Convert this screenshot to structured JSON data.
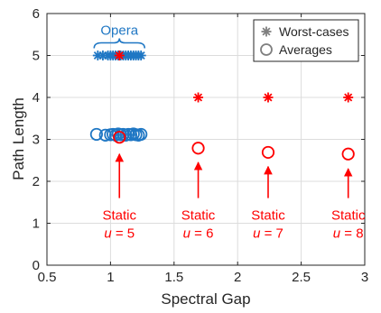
{
  "chart_data": {
    "type": "scatter",
    "title": "",
    "xlabel": "Spectral Gap",
    "ylabel": "Path Length",
    "xlim": [
      0.5,
      3.0
    ],
    "ylim": [
      0,
      6
    ],
    "xticks": [
      0.5,
      1,
      1.5,
      2,
      2.5,
      3
    ],
    "xtick_labels": [
      "0.5",
      "1",
      "1.5",
      "2",
      "2.5",
      "3"
    ],
    "yticks": [
      0,
      1,
      2,
      3,
      4,
      5,
      6
    ],
    "ytick_labels": [
      "0",
      "1",
      "2",
      "3",
      "4",
      "5",
      "6"
    ],
    "grid": true,
    "legend": {
      "position": "top-right",
      "entries": [
        {
          "label": "Worst-cases",
          "marker": "asterisk",
          "color": "#7f7f7f"
        },
        {
          "label": "Averages",
          "marker": "circle",
          "color": "#7f7f7f"
        }
      ]
    },
    "series": [
      {
        "group": "opera",
        "metric": "worst-case",
        "marker": "asterisk",
        "color": "#1f77c4",
        "x": [
          0.9,
          0.94,
          0.98,
          1.0,
          1.02,
          1.04,
          1.06,
          1.08,
          1.1,
          1.12,
          1.14,
          1.16,
          1.18,
          1.2,
          1.22,
          1.24
        ],
        "y": [
          5,
          5,
          5,
          5,
          5,
          5,
          5,
          5,
          5,
          5,
          5,
          5,
          5,
          5,
          5,
          5
        ]
      },
      {
        "group": "opera",
        "metric": "average",
        "marker": "circle",
        "color": "#1f77c4",
        "x": [
          0.89,
          0.96,
          1.0,
          1.02,
          1.04,
          1.06,
          1.08,
          1.1,
          1.12,
          1.14,
          1.16,
          1.18,
          1.2,
          1.22,
          1.24
        ],
        "y": [
          3.12,
          3.1,
          3.11,
          3.12,
          3.1,
          3.13,
          3.11,
          3.12,
          3.1,
          3.12,
          3.11,
          3.13,
          3.11,
          3.1,
          3.12
        ]
      },
      {
        "group": "static",
        "metric": "worst-case",
        "marker": "asterisk",
        "color": "#ff0000",
        "x": [
          1.07,
          1.69,
          2.24,
          2.87
        ],
        "y": [
          5,
          4,
          4,
          4
        ]
      },
      {
        "group": "static",
        "metric": "average",
        "marker": "circle",
        "color": "#ff0000",
        "x": [
          1.07,
          1.69,
          2.24,
          2.87
        ],
        "y": [
          3.05,
          2.79,
          2.69,
          2.65
        ]
      }
    ],
    "annotations": {
      "opera": {
        "label": "Opera",
        "x": 1.07,
        "y": 5.55,
        "color": "#1f77c4"
      },
      "static": [
        {
          "line1": "Static",
          "var": "u",
          "eq": " = 5",
          "x": 1.07,
          "y_label": 1.0,
          "y_arrow_tail": 1.6,
          "y_arrow_head": 2.65
        },
        {
          "line1": "Static",
          "var": "u",
          "eq": " = 6",
          "x": 1.69,
          "y_label": 1.0,
          "y_arrow_tail": 1.6,
          "y_arrow_head": 2.45
        },
        {
          "line1": "Static",
          "var": "u",
          "eq": " = 7",
          "x": 2.24,
          "y_label": 1.0,
          "y_arrow_tail": 1.6,
          "y_arrow_head": 2.35
        },
        {
          "line1": "Static",
          "var": "u",
          "eq": " = 8",
          "x": 2.87,
          "y_label": 1.0,
          "y_arrow_tail": 1.6,
          "y_arrow_head": 2.3
        }
      ],
      "color": "#ff0000"
    }
  }
}
